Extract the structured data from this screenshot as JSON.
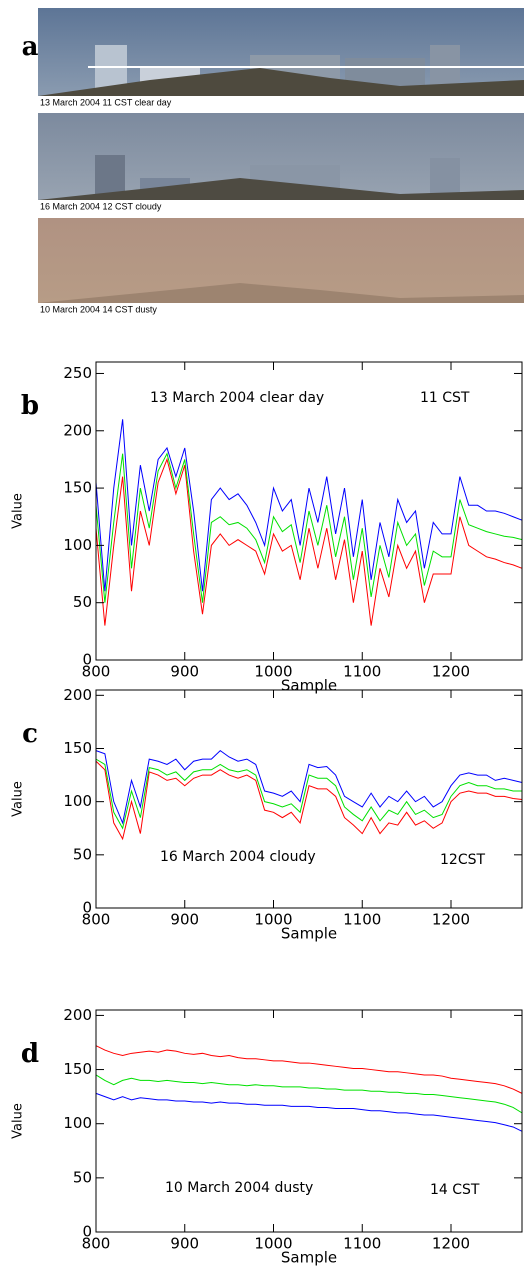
{
  "photos": {
    "label": "a",
    "captions": [
      "13 March 2004  11 CST  clear day",
      "16 March 2004  12 CST  cloudy",
      "10 March 2004  14 CST  dusty"
    ]
  },
  "chart_data": [
    {
      "type": "line",
      "label": "b",
      "xlabel": "Sample",
      "ylabel": "Value",
      "annotations": [
        "13  March  2004  clear day",
        "11 CST"
      ],
      "xlim": [
        800,
        1280
      ],
      "ylim": [
        0,
        260
      ],
      "xticks": [
        800,
        900,
        1000,
        1100,
        1200
      ],
      "yticks": [
        0,
        50,
        100,
        150,
        200,
        250
      ],
      "x": [
        800,
        810,
        820,
        830,
        840,
        850,
        860,
        870,
        880,
        890,
        900,
        910,
        920,
        930,
        940,
        950,
        960,
        970,
        980,
        990,
        1000,
        1010,
        1020,
        1030,
        1040,
        1050,
        1060,
        1070,
        1080,
        1090,
        1100,
        1110,
        1120,
        1130,
        1140,
        1150,
        1160,
        1170,
        1180,
        1190,
        1200,
        1210,
        1220,
        1230,
        1240,
        1250,
        1260,
        1270,
        1280
      ],
      "series": [
        {
          "color": "#ff0000",
          "values": [
            115,
            30,
            100,
            160,
            60,
            130,
            100,
            155,
            175,
            145,
            170,
            95,
            40,
            100,
            110,
            100,
            105,
            100,
            95,
            75,
            110,
            95,
            100,
            70,
            115,
            80,
            115,
            70,
            105,
            50,
            95,
            30,
            80,
            55,
            100,
            80,
            95,
            50,
            75,
            75,
            75,
            125,
            100,
            95,
            90,
            88,
            85,
            83,
            80
          ]
        },
        {
          "color": "#00e000",
          "values": [
            135,
            50,
            120,
            180,
            80,
            150,
            115,
            165,
            180,
            150,
            175,
            110,
            50,
            120,
            125,
            118,
            120,
            115,
            105,
            85,
            125,
            112,
            118,
            85,
            130,
            100,
            135,
            90,
            125,
            70,
            115,
            55,
            100,
            72,
            120,
            100,
            110,
            65,
            95,
            90,
            90,
            140,
            118,
            115,
            112,
            110,
            108,
            107,
            105
          ]
        },
        {
          "color": "#0000ff",
          "values": [
            155,
            60,
            150,
            210,
            100,
            170,
            130,
            175,
            185,
            160,
            185,
            130,
            60,
            140,
            150,
            140,
            145,
            135,
            120,
            100,
            150,
            130,
            140,
            100,
            150,
            120,
            160,
            110,
            150,
            90,
            140,
            70,
            120,
            90,
            140,
            120,
            130,
            80,
            120,
            110,
            110,
            160,
            135,
            135,
            130,
            130,
            128,
            125,
            122
          ]
        }
      ]
    },
    {
      "type": "line",
      "label": "c",
      "xlabel": "Sample",
      "ylabel": "Value",
      "annotations": [
        "16 March 2004 cloudy",
        "12CST"
      ],
      "xlim": [
        800,
        1280
      ],
      "ylim": [
        0,
        205
      ],
      "xticks": [
        800,
        900,
        1000,
        1100,
        1200
      ],
      "yticks": [
        0,
        50,
        100,
        150,
        200
      ],
      "x": [
        800,
        810,
        820,
        830,
        840,
        850,
        860,
        870,
        880,
        890,
        900,
        910,
        920,
        930,
        940,
        950,
        960,
        970,
        980,
        990,
        1000,
        1010,
        1020,
        1030,
        1040,
        1050,
        1060,
        1070,
        1080,
        1090,
        1100,
        1110,
        1120,
        1130,
        1140,
        1150,
        1160,
        1170,
        1180,
        1190,
        1200,
        1210,
        1220,
        1230,
        1240,
        1250,
        1260,
        1270,
        1280
      ],
      "series": [
        {
          "color": "#ff0000",
          "values": [
            138,
            130,
            80,
            65,
            100,
            70,
            128,
            125,
            120,
            122,
            115,
            122,
            125,
            125,
            130,
            125,
            122,
            125,
            120,
            92,
            90,
            85,
            90,
            80,
            115,
            112,
            112,
            105,
            85,
            78,
            70,
            85,
            70,
            80,
            78,
            90,
            78,
            82,
            75,
            80,
            100,
            108,
            110,
            108,
            108,
            105,
            105,
            103,
            102
          ]
        },
        {
          "color": "#00e000",
          "values": [
            140,
            135,
            90,
            75,
            110,
            85,
            132,
            130,
            125,
            128,
            120,
            128,
            130,
            130,
            135,
            130,
            128,
            130,
            125,
            100,
            98,
            95,
            98,
            90,
            125,
            122,
            122,
            115,
            95,
            88,
            82,
            95,
            82,
            92,
            88,
            100,
            88,
            92,
            85,
            88,
            105,
            115,
            118,
            115,
            115,
            112,
            112,
            110,
            110
          ]
        },
        {
          "color": "#0000ff",
          "values": [
            148,
            145,
            100,
            80,
            120,
            95,
            140,
            138,
            135,
            140,
            130,
            138,
            140,
            140,
            148,
            142,
            138,
            140,
            135,
            110,
            108,
            105,
            110,
            100,
            135,
            132,
            133,
            125,
            105,
            100,
            95,
            108,
            95,
            105,
            100,
            110,
            100,
            105,
            95,
            100,
            115,
            125,
            127,
            125,
            125,
            120,
            122,
            120,
            118
          ]
        }
      ]
    },
    {
      "type": "line",
      "label": "d",
      "xlabel": "Sample",
      "ylabel": "Value",
      "annotations": [
        "10 March 2004 dusty",
        "14 CST"
      ],
      "xlim": [
        800,
        1280
      ],
      "ylim": [
        0,
        205
      ],
      "xticks": [
        800,
        900,
        1000,
        1100,
        1200
      ],
      "yticks": [
        0,
        50,
        100,
        150,
        200
      ],
      "x": [
        800,
        810,
        820,
        830,
        840,
        850,
        860,
        870,
        880,
        890,
        900,
        910,
        920,
        930,
        940,
        950,
        960,
        970,
        980,
        990,
        1000,
        1010,
        1020,
        1030,
        1040,
        1050,
        1060,
        1070,
        1080,
        1090,
        1100,
        1110,
        1120,
        1130,
        1140,
        1150,
        1160,
        1170,
        1180,
        1190,
        1200,
        1210,
        1220,
        1230,
        1240,
        1250,
        1260,
        1270,
        1280
      ],
      "series": [
        {
          "color": "#ff0000",
          "values": [
            172,
            168,
            165,
            163,
            165,
            166,
            167,
            166,
            168,
            167,
            165,
            164,
            165,
            163,
            162,
            163,
            161,
            160,
            160,
            159,
            158,
            158,
            157,
            156,
            156,
            155,
            154,
            153,
            152,
            151,
            151,
            150,
            149,
            148,
            148,
            147,
            146,
            145,
            145,
            144,
            142,
            141,
            140,
            139,
            138,
            137,
            135,
            132,
            128
          ]
        },
        {
          "color": "#00e000",
          "values": [
            145,
            140,
            136,
            140,
            142,
            140,
            140,
            139,
            140,
            139,
            138,
            138,
            137,
            138,
            137,
            136,
            136,
            135,
            136,
            135,
            135,
            134,
            134,
            134,
            133,
            133,
            132,
            132,
            131,
            131,
            131,
            130,
            130,
            129,
            129,
            128,
            128,
            127,
            127,
            126,
            125,
            124,
            123,
            122,
            121,
            120,
            118,
            115,
            110
          ]
        },
        {
          "color": "#0000ff",
          "values": [
            128,
            125,
            122,
            125,
            122,
            124,
            123,
            122,
            122,
            121,
            121,
            120,
            120,
            119,
            120,
            119,
            119,
            118,
            118,
            117,
            117,
            117,
            116,
            116,
            116,
            115,
            115,
            114,
            114,
            114,
            113,
            112,
            112,
            111,
            110,
            110,
            109,
            108,
            108,
            107,
            106,
            105,
            104,
            103,
            102,
            101,
            99,
            97,
            93
          ]
        }
      ]
    }
  ]
}
